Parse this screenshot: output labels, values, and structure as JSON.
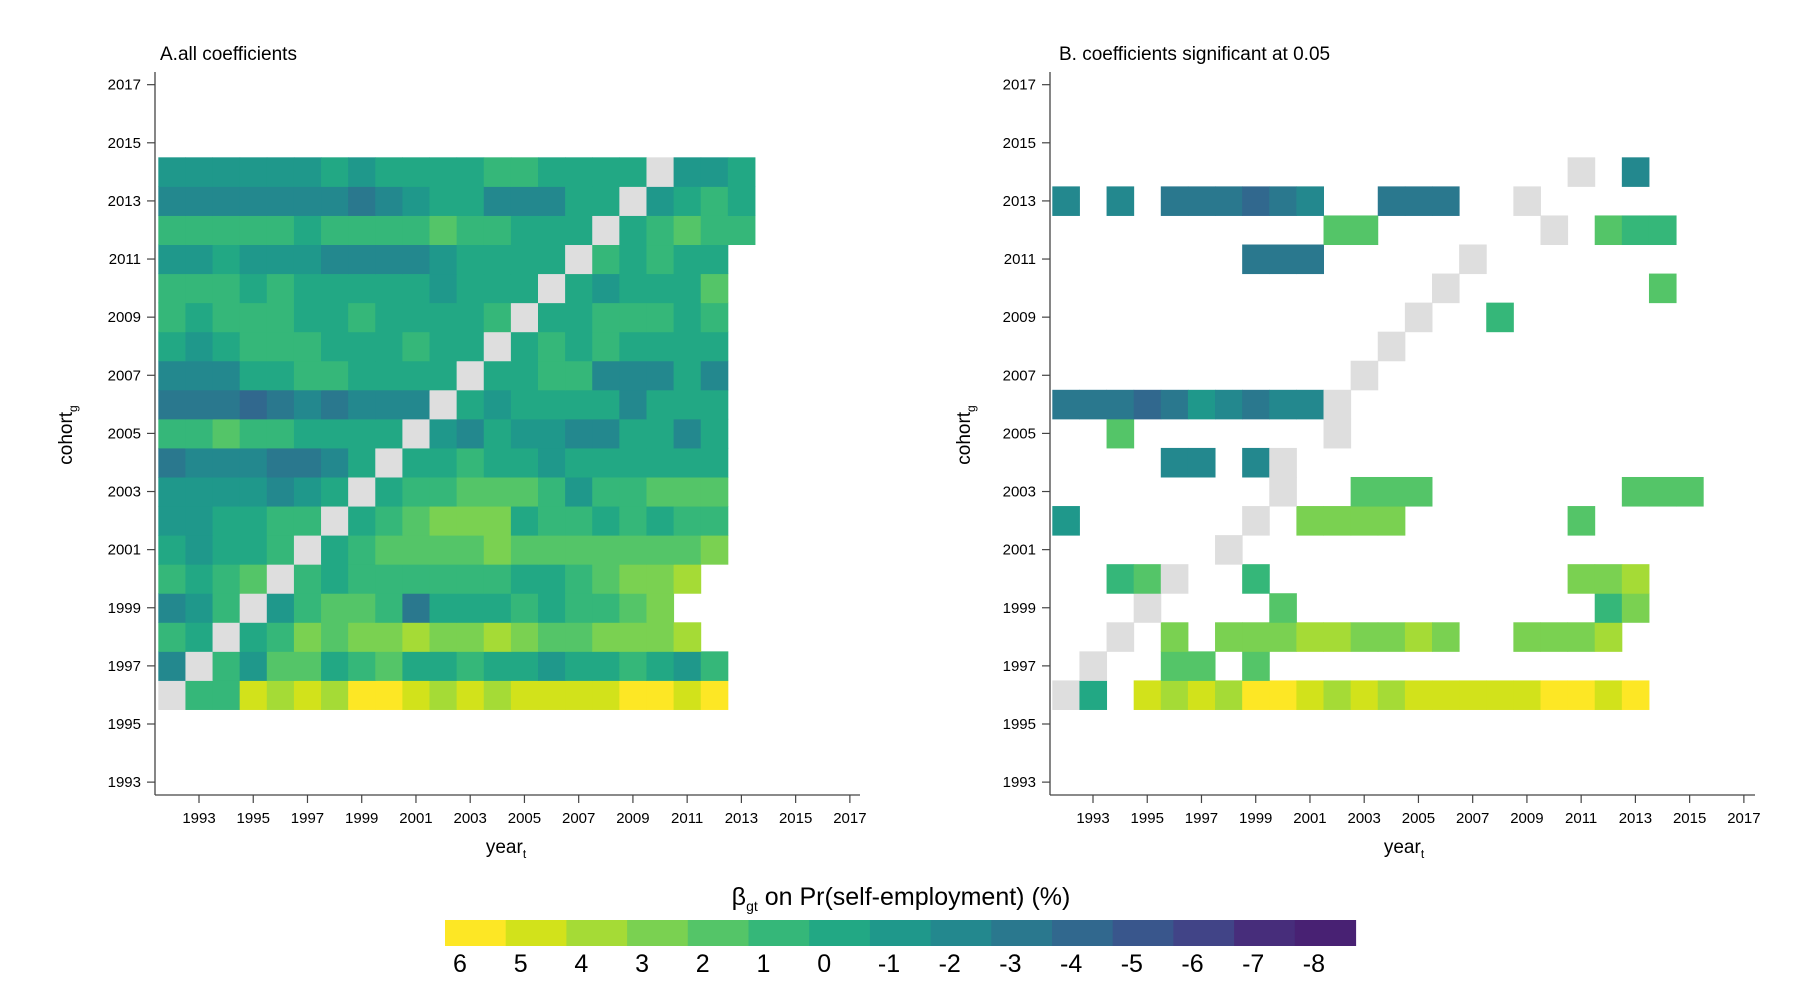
{
  "colors": {
    "diag": "#dedede",
    "axis": "#444444",
    "palette": [
      "#fde725",
      "#d2e21b",
      "#a5db36",
      "#7ad151",
      "#54c568",
      "#35b779",
      "#22a884",
      "#1f988b",
      "#23888e",
      "#2a788e",
      "#31688e",
      "#39568c",
      "#414487",
      "#472d7b",
      "#482173",
      "#440154"
    ]
  },
  "legend": {
    "title_beta": "β",
    "title_sub": "gt",
    "title_rest": " on Pr(self-employment) (%)",
    "labels": [
      "6",
      "5",
      "4",
      "3",
      "2",
      "1",
      "0",
      "-1",
      "-2",
      "-3",
      "-4",
      "-5",
      "-6",
      "-7",
      "-8"
    ]
  },
  "chart_data": [
    {
      "type": "heatmap",
      "title": "A.all coefficients",
      "xlabel": "year",
      "xlabel_sub": "t",
      "ylabel": "cohort",
      "ylabel_sub": "g",
      "xticks": [
        "1993",
        "1995",
        "1997",
        "1999",
        "2001",
        "2003",
        "2005",
        "2007",
        "2009",
        "2011",
        "2013",
        "2015",
        "2017"
      ],
      "yticks": [
        "1993",
        "1995",
        "1997",
        "1999",
        "2001",
        "2003",
        "2005",
        "2007",
        "2009",
        "2011",
        "2013",
        "2015",
        "2017"
      ],
      "xlim": [
        1991.5,
        2017.5
      ],
      "ylim": [
        1992.5,
        2017.5
      ],
      "diagonal_color": "#dedede",
      "rows": [
        {
          "cohort": 1996,
          "start": 1992,
          "values": [
            "D",
            "#35b779",
            "#35b779",
            "#d2e21b",
            "#a5db36",
            "#d2e21b",
            "#a5db36",
            "#fde725",
            "#fde725",
            "#d2e21b",
            "#a5db36",
            "#d2e21b",
            "#a5db36",
            "#d2e21b",
            "#d2e21b",
            "#d2e21b",
            "#d2e21b",
            "#fde725",
            "#fde725",
            "#d2e21b",
            "#fde725"
          ]
        },
        {
          "cohort": 1997,
          "start": 1992,
          "values": [
            "#23888e",
            "D",
            "#35b779",
            "#1f988b",
            "#54c568",
            "#54c568",
            "#22a884",
            "#35b779",
            "#54c568",
            "#22a884",
            "#22a884",
            "#35b779",
            "#22a884",
            "#22a884",
            "#1f988b",
            "#22a884",
            "#22a884",
            "#35b779",
            "#22a884",
            "#1f988b",
            "#35b779"
          ]
        },
        {
          "cohort": 1998,
          "start": 1992,
          "values": [
            "#35b779",
            "#22a884",
            "D",
            "#22a884",
            "#35b779",
            "#7ad151",
            "#54c568",
            "#7ad151",
            "#7ad151",
            "#a5db36",
            "#7ad151",
            "#7ad151",
            "#a5db36",
            "#7ad151",
            "#54c568",
            "#54c568",
            "#7ad151",
            "#7ad151",
            "#7ad151",
            "#a5db36"
          ]
        },
        {
          "cohort": 1999,
          "start": 1992,
          "values": [
            "#23888e",
            "#1f988b",
            "#35b779",
            "D",
            "#1f988b",
            "#35b779",
            "#54c568",
            "#54c568",
            "#35b779",
            "#2a788e",
            "#22a884",
            "#22a884",
            "#22a884",
            "#35b779",
            "#22a884",
            "#35b779",
            "#35b779",
            "#54c568",
            "#7ad151"
          ]
        },
        {
          "cohort": 2000,
          "start": 1992,
          "values": [
            "#35b779",
            "#22a884",
            "#35b779",
            "#54c568",
            "D",
            "#35b779",
            "#22a884",
            "#35b779",
            "#35b779",
            "#35b779",
            "#35b779",
            "#35b779",
            "#35b779",
            "#22a884",
            "#22a884",
            "#35b779",
            "#54c568",
            "#7ad151",
            "#7ad151",
            "#a5db36"
          ]
        },
        {
          "cohort": 2001,
          "start": 1992,
          "values": [
            "#22a884",
            "#1f988b",
            "#22a884",
            "#22a884",
            "#35b779",
            "D",
            "#22a884",
            "#35b779",
            "#54c568",
            "#54c568",
            "#54c568",
            "#54c568",
            "#7ad151",
            "#54c568",
            "#54c568",
            "#54c568",
            "#54c568",
            "#54c568",
            "#54c568",
            "#54c568",
            "#7ad151"
          ]
        },
        {
          "cohort": 2002,
          "start": 1992,
          "values": [
            "#1f988b",
            "#1f988b",
            "#22a884",
            "#22a884",
            "#35b779",
            "#35b779",
            "D",
            "#22a884",
            "#35b779",
            "#54c568",
            "#7ad151",
            "#7ad151",
            "#7ad151",
            "#22a884",
            "#35b779",
            "#35b779",
            "#22a884",
            "#35b779",
            "#22a884",
            "#35b779",
            "#35b779"
          ]
        },
        {
          "cohort": 2003,
          "start": 1992,
          "values": [
            "#1f988b",
            "#1f988b",
            "#1f988b",
            "#1f988b",
            "#23888e",
            "#1f988b",
            "#22a884",
            "D",
            "#22a884",
            "#35b779",
            "#35b779",
            "#54c568",
            "#54c568",
            "#54c568",
            "#35b779",
            "#1f988b",
            "#35b779",
            "#35b779",
            "#54c568",
            "#54c568",
            "#54c568"
          ]
        },
        {
          "cohort": 2004,
          "start": 1992,
          "values": [
            "#2a788e",
            "#23888e",
            "#23888e",
            "#23888e",
            "#2a788e",
            "#2a788e",
            "#23888e",
            "#22a884",
            "D",
            "#22a884",
            "#22a884",
            "#35b779",
            "#22a884",
            "#22a884",
            "#1f988b",
            "#22a884",
            "#22a884",
            "#22a884",
            "#22a884",
            "#22a884",
            "#22a884"
          ]
        },
        {
          "cohort": 2005,
          "start": 1992,
          "values": [
            "#35b779",
            "#35b779",
            "#54c568",
            "#35b779",
            "#35b779",
            "#22a884",
            "#22a884",
            "#22a884",
            "#22a884",
            "D",
            "#1f988b",
            "#23888e",
            "#22a884",
            "#1f988b",
            "#1f988b",
            "#23888e",
            "#23888e",
            "#22a884",
            "#22a884",
            "#23888e",
            "#22a884"
          ]
        },
        {
          "cohort": 2006,
          "start": 1992,
          "values": [
            "#2a788e",
            "#2a788e",
            "#2a788e",
            "#31688e",
            "#2a788e",
            "#23888e",
            "#2a788e",
            "#23888e",
            "#23888e",
            "#23888e",
            "D",
            "#22a884",
            "#1f988b",
            "#22a884",
            "#22a884",
            "#22a884",
            "#22a884",
            "#23888e",
            "#22a884",
            "#22a884",
            "#22a884"
          ]
        },
        {
          "cohort": 2007,
          "start": 1992,
          "values": [
            "#23888e",
            "#23888e",
            "#23888e",
            "#22a884",
            "#22a884",
            "#35b779",
            "#35b779",
            "#22a884",
            "#22a884",
            "#22a884",
            "#22a884",
            "D",
            "#22a884",
            "#22a884",
            "#35b779",
            "#35b779",
            "#23888e",
            "#23888e",
            "#23888e",
            "#22a884",
            "#23888e"
          ]
        },
        {
          "cohort": 2008,
          "start": 1992,
          "values": [
            "#22a884",
            "#1f988b",
            "#22a884",
            "#35b779",
            "#35b779",
            "#35b779",
            "#22a884",
            "#22a884",
            "#22a884",
            "#35b779",
            "#22a884",
            "#22a884",
            "D",
            "#22a884",
            "#35b779",
            "#22a884",
            "#35b779",
            "#22a884",
            "#22a884",
            "#22a884",
            "#22a884"
          ]
        },
        {
          "cohort": 2009,
          "start": 1992,
          "values": [
            "#35b779",
            "#22a884",
            "#35b779",
            "#35b779",
            "#35b779",
            "#22a884",
            "#22a884",
            "#35b779",
            "#22a884",
            "#22a884",
            "#22a884",
            "#22a884",
            "#35b779",
            "D",
            "#22a884",
            "#22a884",
            "#35b779",
            "#35b779",
            "#35b779",
            "#22a884",
            "#35b779"
          ]
        },
        {
          "cohort": 2010,
          "start": 1992,
          "values": [
            "#35b779",
            "#35b779",
            "#35b779",
            "#22a884",
            "#35b779",
            "#22a884",
            "#22a884",
            "#22a884",
            "#22a884",
            "#22a884",
            "#1f988b",
            "#22a884",
            "#22a884",
            "#22a884",
            "D",
            "#22a884",
            "#1f988b",
            "#22a884",
            "#22a884",
            "#22a884",
            "#54c568"
          ]
        },
        {
          "cohort": 2011,
          "start": 1992,
          "values": [
            "#1f988b",
            "#1f988b",
            "#22a884",
            "#1f988b",
            "#1f988b",
            "#1f988b",
            "#23888e",
            "#23888e",
            "#23888e",
            "#23888e",
            "#1f988b",
            "#22a884",
            "#22a884",
            "#22a884",
            "#22a884",
            "D",
            "#35b779",
            "#22a884",
            "#35b779",
            "#22a884",
            "#22a884"
          ]
        },
        {
          "cohort": 2012,
          "start": 1992,
          "values": [
            "#35b779",
            "#35b779",
            "#35b779",
            "#35b779",
            "#35b779",
            "#22a884",
            "#35b779",
            "#35b779",
            "#35b779",
            "#35b779",
            "#54c568",
            "#35b779",
            "#35b779",
            "#22a884",
            "#22a884",
            "#22a884",
            "D",
            "#22a884",
            "#35b779",
            "#54c568",
            "#35b779",
            "#35b779"
          ]
        },
        {
          "cohort": 2013,
          "start": 1992,
          "values": [
            "#23888e",
            "#23888e",
            "#23888e",
            "#23888e",
            "#23888e",
            "#23888e",
            "#23888e",
            "#2a788e",
            "#23888e",
            "#1f988b",
            "#22a884",
            "#22a884",
            "#23888e",
            "#23888e",
            "#23888e",
            "#22a884",
            "#22a884",
            "D",
            "#1f988b",
            "#22a884",
            "#35b779",
            "#22a884"
          ]
        },
        {
          "cohort": 2014,
          "start": 1992,
          "values": [
            "#1f988b",
            "#1f988b",
            "#1f988b",
            "#1f988b",
            "#1f988b",
            "#1f988b",
            "#22a884",
            "#1f988b",
            "#22a884",
            "#22a884",
            "#22a884",
            "#22a884",
            "#35b779",
            "#35b779",
            "#22a884",
            "#22a884",
            "#22a884",
            "#22a884",
            "D",
            "#1f988b",
            "#1f988b",
            "#22a884"
          ]
        }
      ]
    },
    {
      "type": "heatmap",
      "title": "B. coefficients significant at 0.05",
      "xlabel": "year",
      "xlabel_sub": "t",
      "ylabel": "cohort",
      "ylabel_sub": "g",
      "xticks": [
        "1993",
        "1995",
        "1997",
        "1999",
        "2001",
        "2003",
        "2005",
        "2007",
        "2009",
        "2011",
        "2013",
        "2015",
        "2017"
      ],
      "yticks": [
        "1993",
        "1995",
        "1997",
        "1999",
        "2001",
        "2003",
        "2005",
        "2007",
        "2009",
        "2011",
        "2013",
        "2015",
        "2017"
      ],
      "xlim": [
        1991.5,
        2017.5
      ],
      "ylim": [
        1992.5,
        2017.5
      ],
      "diagonal_color": "#dedede",
      "rows": [
        {
          "cohort": 1996,
          "start": 1992,
          "values": [
            "D",
            "#22a884",
            null,
            "#d2e21b",
            "#a5db36",
            "#d2e21b",
            "#a5db36",
            "#fde725",
            "#fde725",
            "#d2e21b",
            "#a5db36",
            "#d2e21b",
            "#a5db36",
            "#d2e21b",
            "#d2e21b",
            "#d2e21b",
            "#d2e21b",
            "#d2e21b",
            "#fde725",
            "#fde725",
            "#d2e21b",
            "#fde725"
          ]
        },
        {
          "cohort": 1997,
          "start": 1993,
          "values": [
            "D",
            null,
            null,
            "#54c568",
            "#54c568",
            null,
            "#54c568"
          ]
        },
        {
          "cohort": 1998,
          "start": 1994,
          "values": [
            "D",
            null,
            "#7ad151",
            null,
            "#7ad151",
            "#7ad151",
            "#7ad151",
            "#a5db36",
            "#a5db36",
            "#7ad151",
            "#7ad151",
            "#a5db36",
            "#7ad151",
            null,
            null,
            "#7ad151",
            "#7ad151",
            "#7ad151",
            "#a5db36"
          ]
        },
        {
          "cohort": 1999,
          "start": 1995,
          "values": [
            "D",
            null,
            null,
            null,
            null,
            "#54c568",
            null,
            null,
            null,
            null,
            null,
            null,
            null,
            null,
            null,
            null,
            null,
            "#35b779",
            "#7ad151"
          ]
        },
        {
          "cohort": 2000,
          "start": 1994,
          "values": [
            "#35b779",
            "#54c568",
            "D",
            null,
            null,
            "#35b779",
            null,
            null,
            null,
            null,
            null,
            null,
            null,
            null,
            null,
            null,
            null,
            "#7ad151",
            "#7ad151",
            "#a5db36"
          ]
        },
        {
          "cohort": 2001,
          "start": 1998,
          "values": [
            "D"
          ]
        },
        {
          "cohort": 2002,
          "start": 1992,
          "values": [
            "#1f988b",
            null,
            null,
            null,
            null,
            null,
            null,
            "D",
            null,
            "#7ad151",
            "#7ad151",
            "#7ad151",
            "#7ad151",
            null,
            null,
            null,
            null,
            null,
            null,
            "#54c568"
          ]
        },
        {
          "cohort": 2003,
          "start": 2000,
          "values": [
            "D",
            null,
            null,
            "#54c568",
            "#54c568",
            "#54c568",
            null,
            null,
            null,
            null,
            null,
            null,
            null,
            "#54c568",
            "#54c568",
            "#54c568"
          ]
        },
        {
          "cohort": 2004,
          "start": 1996,
          "values": [
            "#23888e",
            "#23888e",
            null,
            "#23888e",
            "D"
          ]
        },
        {
          "cohort": 2005,
          "start": 1994,
          "values": [
            "#54c568",
            null,
            null,
            null,
            null,
            null,
            null,
            null,
            "D"
          ]
        },
        {
          "cohort": 2006,
          "start": 1992,
          "values": [
            "#2a788e",
            "#2a788e",
            "#2a788e",
            "#31688e",
            "#2a788e",
            "#1f988b",
            "#23888e",
            "#2a788e",
            "#23888e",
            "#23888e",
            "D"
          ]
        },
        {
          "cohort": 2007,
          "start": 2003,
          "values": [
            "D"
          ]
        },
        {
          "cohort": 2008,
          "start": 2004,
          "values": [
            "D"
          ]
        },
        {
          "cohort": 2009,
          "start": 2005,
          "values": [
            "D",
            null,
            null,
            "#35b779"
          ]
        },
        {
          "cohort": 2010,
          "start": 2006,
          "values": [
            "D",
            null,
            null,
            null,
            null,
            null,
            null,
            null,
            "#54c568"
          ]
        },
        {
          "cohort": 2011,
          "start": 1999,
          "values": [
            "#2a788e",
            "#2a788e",
            "#2a788e",
            null,
            null,
            null,
            null,
            null,
            "D"
          ]
        },
        {
          "cohort": 2012,
          "start": 2002,
          "values": [
            "#54c568",
            "#54c568",
            null,
            null,
            null,
            null,
            null,
            null,
            "D",
            null,
            "#54c568",
            "#35b779",
            "#35b779"
          ]
        },
        {
          "cohort": 2013,
          "start": 1992,
          "values": [
            "#23888e",
            null,
            "#23888e",
            null,
            "#2a788e",
            "#2a788e",
            "#2a788e",
            "#31688e",
            "#2a788e",
            "#23888e",
            null,
            null,
            "#2a788e",
            "#2a788e",
            "#2a788e",
            null,
            null,
            "D"
          ]
        },
        {
          "cohort": 2014,
          "start": 2011,
          "values": [
            "D",
            null,
            "#23888e"
          ]
        }
      ]
    }
  ]
}
